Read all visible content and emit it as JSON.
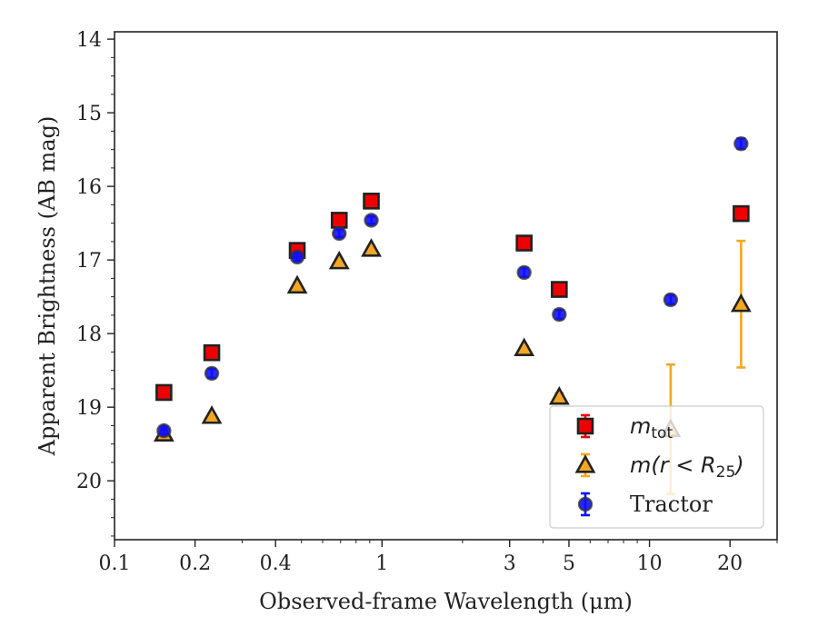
{
  "chart_data": {
    "type": "scatter",
    "xlabel": "Observed-frame Wavelength (μm)",
    "ylabel": "Apparent Brightness (AB mag)",
    "xscale": "log",
    "xlim": [
      0.1,
      30
    ],
    "ylim": [
      20.8,
      13.9
    ],
    "x_ticks": [
      {
        "value": 0.1,
        "label": "0.1"
      },
      {
        "value": 0.2,
        "label": "0.2"
      },
      {
        "value": 0.4,
        "label": "0.4"
      },
      {
        "value": 1,
        "label": "1"
      },
      {
        "value": 3,
        "label": "3"
      },
      {
        "value": 5,
        "label": "5"
      },
      {
        "value": 10,
        "label": "10"
      },
      {
        "value": 20,
        "label": "20"
      }
    ],
    "y_ticks": [
      {
        "value": 14,
        "label": "14"
      },
      {
        "value": 15,
        "label": "15"
      },
      {
        "value": 16,
        "label": "16"
      },
      {
        "value": 17,
        "label": "17"
      },
      {
        "value": 18,
        "label": "18"
      },
      {
        "value": 19,
        "label": "19"
      },
      {
        "value": 20,
        "label": "20"
      }
    ],
    "legend_position": "lower-right",
    "series": [
      {
        "name": "m_tot",
        "legend_text": {
          "base": "m",
          "sub": "tot"
        },
        "marker": "square",
        "color": "#ee0000",
        "edge_color": "#222222",
        "error_color": "#ee0000",
        "points": [
          {
            "x": 0.153,
            "y": 18.8,
            "err": 0.03
          },
          {
            "x": 0.231,
            "y": 18.26,
            "err": 0.03
          },
          {
            "x": 0.482,
            "y": 16.87,
            "err": 0.03
          },
          {
            "x": 0.692,
            "y": 16.46,
            "err": 0.03
          },
          {
            "x": 0.912,
            "y": 16.2,
            "err": 0.03
          },
          {
            "x": 3.4,
            "y": 16.77,
            "err": 0.03
          },
          {
            "x": 4.6,
            "y": 17.4,
            "err": 0.03
          },
          {
            "x": 22.0,
            "y": 16.37,
            "err": 0.03
          }
        ]
      },
      {
        "name": "m(r < R25)",
        "legend_text": {
          "base": "m(r < R",
          "sub": "25",
          "tail": ")"
        },
        "marker": "triangle",
        "color": "#f5a623",
        "edge_color": "#222222",
        "error_color": "#f5a623",
        "points": [
          {
            "x": 0.153,
            "y": 19.36,
            "err": 0.03
          },
          {
            "x": 0.231,
            "y": 19.12,
            "err": 0.03
          },
          {
            "x": 0.482,
            "y": 17.35,
            "err": 0.03
          },
          {
            "x": 0.692,
            "y": 17.02,
            "err": 0.03
          },
          {
            "x": 0.912,
            "y": 16.85,
            "err": 0.03
          },
          {
            "x": 3.4,
            "y": 18.2,
            "err": 0.03
          },
          {
            "x": 4.6,
            "y": 18.86,
            "err": 0.05
          },
          {
            "x": 12.0,
            "y": 19.3,
            "err": 0.88
          },
          {
            "x": 22.0,
            "y": 17.6,
            "err": 0.86
          }
        ]
      },
      {
        "name": "Tractor",
        "legend_text": {
          "base": "Tractor"
        },
        "marker": "circle",
        "color": "#1010ff",
        "edge_color": "#333333",
        "error_color": "#1010ff",
        "points": [
          {
            "x": 0.153,
            "y": 19.32,
            "err": 0.05
          },
          {
            "x": 0.231,
            "y": 18.54,
            "err": 0.06
          },
          {
            "x": 0.482,
            "y": 16.96,
            "err": 0.05
          },
          {
            "x": 0.692,
            "y": 16.64,
            "err": 0.05
          },
          {
            "x": 0.912,
            "y": 16.46,
            "err": 0.05
          },
          {
            "x": 3.4,
            "y": 17.17,
            "err": 0.06
          },
          {
            "x": 4.6,
            "y": 17.74,
            "err": 0.06
          },
          {
            "x": 12.0,
            "y": 17.54,
            "err": 0.06
          },
          {
            "x": 22.0,
            "y": 15.42,
            "err": 0.07
          }
        ]
      }
    ]
  }
}
